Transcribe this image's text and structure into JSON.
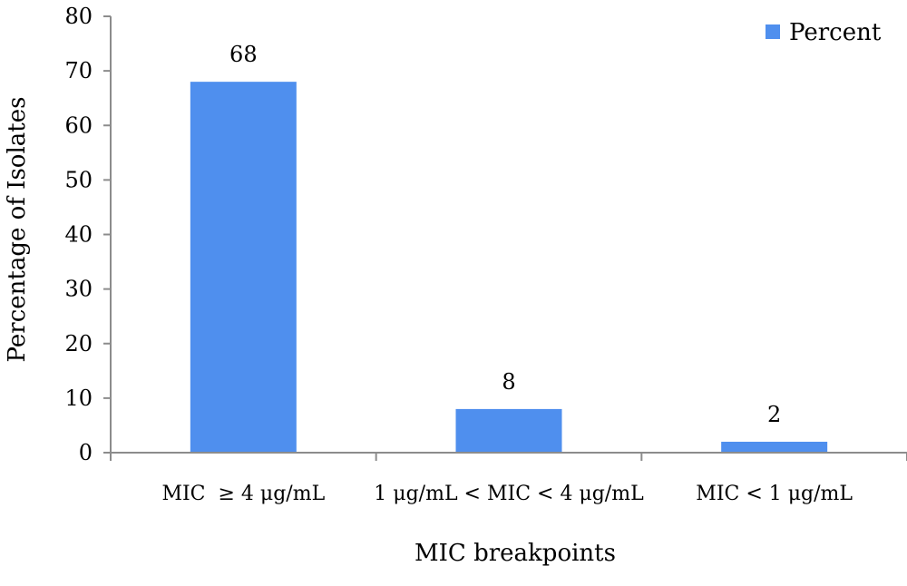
{
  "chart_data": {
    "type": "bar",
    "title": "",
    "xlabel": "MIC breakpoints",
    "ylabel": "Percentage of Isolates",
    "categories": [
      "MIC  ≥ 4 μg/mL",
      "1 μg/mL < MIC < 4 μg/mL",
      "MIC < 1 μg/mL"
    ],
    "series": [
      {
        "name": "Percent",
        "values": [
          68,
          8,
          2
        ],
        "color": "#4f8fee"
      }
    ],
    "ylim": [
      0,
      80
    ],
    "yticks": [
      0,
      10,
      20,
      30,
      40,
      50,
      60,
      70,
      80
    ],
    "data_labels": true,
    "grid": false,
    "legend_position": "top-right"
  }
}
